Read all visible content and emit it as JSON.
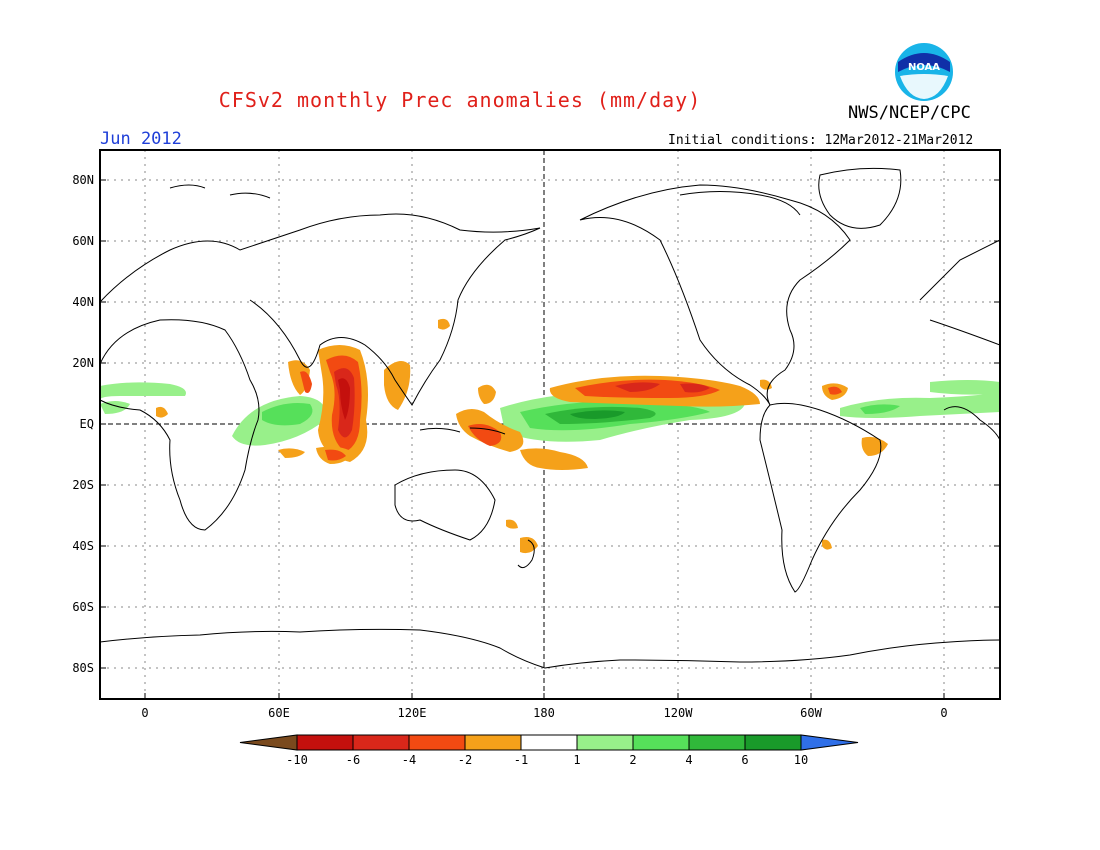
{
  "title": "CFSv2 monthly Prec anomalies (mm/day)",
  "agency": "NWS/NCEP/CPC",
  "month": "Jun 2012",
  "initial_conditions": "Initial conditions: 12Mar2012-21Mar2012",
  "logo_text": "NOAA",
  "lat_labels": [
    "80N",
    "60N",
    "40N",
    "20N",
    "EQ",
    "20S",
    "40S",
    "60S",
    "80S"
  ],
  "lon_labels": [
    "0",
    "60E",
    "120E",
    "180",
    "120W",
    "60W",
    "0"
  ],
  "legend": {
    "labels": [
      "-10",
      "-6",
      "-4",
      "-2",
      "-1",
      "1",
      "2",
      "4",
      "6",
      "10"
    ],
    "colors": [
      "#7a4a1e",
      "#c4100d",
      "#d9271a",
      "#f24a12",
      "#f5a11a",
      "#ffffff",
      "#98f08a",
      "#56e05a",
      "#30b83a",
      "#199a2a",
      "#2f6fe8"
    ]
  }
}
